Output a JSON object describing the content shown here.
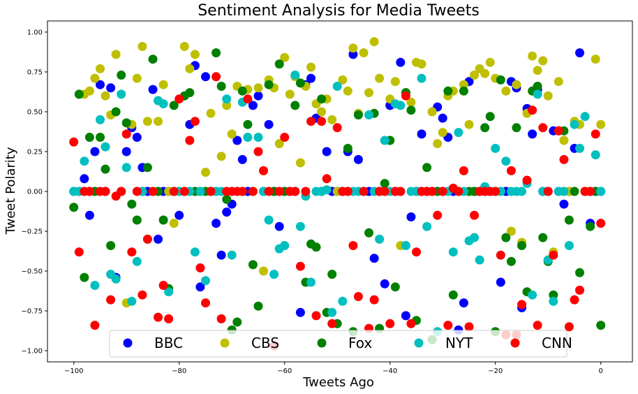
{
  "chart_data": {
    "type": "scatter",
    "title": "Sentiment Analysis for Media Tweets",
    "xlabel": "Tweets Ago",
    "ylabel": "Tweet Polarity",
    "xlim": [
      -105,
      6
    ],
    "ylim": [
      -1.07,
      1.07
    ],
    "xticks": [
      -100,
      -80,
      -60,
      -40,
      -20,
      0
    ],
    "yticks": [
      -1.0,
      -0.75,
      -0.5,
      -0.25,
      0.0,
      0.25,
      0.5,
      0.75,
      1.0
    ],
    "xtick_labels": [
      "−100",
      "−80",
      "−60",
      "−40",
      "−20",
      "0"
    ],
    "ytick_labels": [
      "−1.00",
      "−0.75",
      "−0.50",
      "−0.25",
      "0.00",
      "0.25",
      "0.50",
      "0.75",
      "1.00"
    ],
    "grid": false,
    "legend_position": "bottom",
    "series": [
      {
        "name": "BBC",
        "color": "#0000ff",
        "x": [
          -100,
          -99,
          -98,
          -97,
          -96,
          -95,
          -94,
          -93,
          -92,
          -91,
          -90,
          -89,
          -88,
          -87,
          -86,
          -85,
          -84,
          -83,
          -82,
          -81,
          -80,
          -79,
          -78,
          -77,
          -76,
          -75,
          -74,
          -73,
          -72,
          -71,
          -70,
          -69,
          -68,
          -67,
          -66,
          -65,
          -64,
          -63,
          -62,
          -61,
          -60,
          -59,
          -58,
          -57,
          -56,
          -55,
          -54,
          -53,
          -52,
          -51,
          -50,
          -49,
          -48,
          -47,
          -46,
          -45,
          -44,
          -43,
          -42,
          -41,
          -40,
          -39,
          -38,
          -37,
          -36,
          -35,
          -34,
          -33,
          -32,
          -31,
          -30,
          -29,
          -28,
          -27,
          -26,
          -25,
          -24,
          -23,
          -22,
          -21,
          -20,
          -19,
          -18,
          -17,
          -16,
          -15,
          -14,
          -13,
          -12,
          -11,
          -10,
          -9,
          -8,
          -7,
          -6,
          -5,
          -4,
          -3,
          -2,
          -1,
          0
        ],
        "y": [
          0,
          0,
          0.08,
          -0.15,
          0.25,
          0.67,
          0,
          0.65,
          -0.54,
          0,
          0.25,
          0.4,
          0.34,
          0.15,
          0,
          0.64,
          -0.3,
          0,
          0,
          0,
          -0.15,
          0,
          0.42,
          0.79,
          -0.6,
          0.72,
          0,
          -0.2,
          -0.4,
          -0.13,
          -0.08,
          0.32,
          0.2,
          0,
          0.54,
          0.6,
          0,
          0.42,
          0,
          -0.22,
          0,
          0,
          0,
          -0.76,
          0.67,
          0.71,
          0.46,
          0,
          0.25,
          0,
          0,
          0,
          0.25,
          0.86,
          0.2,
          0,
          0,
          -0.42,
          0,
          -0.58,
          0.54,
          0,
          0.81,
          -0.78,
          -0.16,
          0,
          0.36,
          0,
          0,
          0.53,
          0.46,
          0.34,
          0,
          -0.87,
          -0.7,
          0.69,
          0,
          0,
          0,
          0,
          0,
          -0.57,
          0,
          0.69,
          0.65,
          -0.73,
          0.52,
          0.36,
          0.64,
          0,
          0,
          0.38,
          0,
          -0.08,
          0,
          0.27,
          0.87,
          0,
          -0.2,
          0,
          0
        ]
      },
      {
        "name": "CBS",
        "color": "#bfbf00",
        "x": [
          -100,
          -99,
          -98,
          -97,
          -96,
          -95,
          -94,
          -93,
          -92,
          -91,
          -90,
          -89,
          -88,
          -87,
          -86,
          -85,
          -84,
          -83,
          -82,
          -81,
          -80,
          -79,
          -78,
          -77,
          -76,
          -75,
          -74,
          -73,
          -72,
          -71,
          -70,
          -69,
          -68,
          -67,
          -66,
          -65,
          -64,
          -63,
          -62,
          -61,
          -60,
          -59,
          -58,
          -57,
          -56,
          -55,
          -54,
          -53,
          -52,
          -51,
          -50,
          -49,
          -48,
          -47,
          -46,
          -45,
          -44,
          -43,
          -42,
          -41,
          -40,
          -39,
          -38,
          -37,
          -36,
          -35,
          -34,
          -33,
          -32,
          -31,
          -30,
          -29,
          -28,
          -27,
          -26,
          -25,
          -24,
          -23,
          -22,
          -21,
          -20,
          -19,
          -18,
          -17,
          -16,
          -15,
          -14,
          -13,
          -12,
          -11,
          -10,
          -9,
          -8,
          -7,
          -6,
          -5,
          -4,
          -3,
          -2,
          -1,
          0
        ],
        "y": [
          0,
          0,
          0.61,
          0.63,
          0.71,
          0.77,
          0.6,
          0.48,
          0.86,
          0,
          -0.7,
          0.42,
          0.71,
          0.91,
          0.44,
          0,
          0.44,
          0.67,
          0,
          -0.2,
          0,
          0.91,
          0.77,
          0.86,
          0,
          0.12,
          0.49,
          0,
          0.22,
          0.54,
          0.36,
          0.66,
          0,
          0.64,
          0,
          0.65,
          -0.5,
          0.7,
          0.65,
          0.3,
          0.84,
          0.61,
          0.72,
          0.18,
          0.66,
          0.78,
          0.55,
          0.5,
          0.58,
          0.45,
          0,
          0.7,
          0.63,
          0.9,
          0.49,
          0.87,
          0.62,
          0.94,
          0.71,
          0,
          0.58,
          0.69,
          -0.34,
          0.62,
          0.56,
          0.81,
          0.8,
          0,
          0.5,
          0.3,
          0.37,
          0.6,
          0.63,
          0,
          0.67,
          0.42,
          0.73,
          0.77,
          0.74,
          0.81,
          0.71,
          0,
          0.63,
          -0.25,
          0.67,
          -0.32,
          0.49,
          0.85,
          0.76,
          0.82,
          0.6,
          -0.38,
          0.69,
          0.32,
          0,
          0.44,
          0.42,
          0,
          0,
          0.83,
          0.42
        ]
      },
      {
        "name": "Fox",
        "color": "#008000",
        "x": [
          -100,
          -99,
          -98,
          -97,
          -96,
          -95,
          -94,
          -93,
          -92,
          -91,
          -90,
          -89,
          -88,
          -87,
          -86,
          -85,
          -84,
          -83,
          -82,
          -81,
          -80,
          -79,
          -78,
          -77,
          -76,
          -75,
          -74,
          -73,
          -72,
          -71,
          -70,
          -69,
          -68,
          -67,
          -66,
          -65,
          -64,
          -63,
          -62,
          -61,
          -60,
          -59,
          -58,
          -57,
          -56,
          -55,
          -54,
          -53,
          -52,
          -51,
          -50,
          -49,
          -48,
          -47,
          -46,
          -45,
          -44,
          -43,
          -42,
          -41,
          -40,
          -39,
          -38,
          -37,
          -36,
          -35,
          -34,
          -33,
          -32,
          -31,
          -30,
          -29,
          -28,
          -27,
          -26,
          -25,
          -24,
          -23,
          -22,
          -21,
          -20,
          -19,
          -18,
          -17,
          -16,
          -15,
          -14,
          -13,
          -12,
          -11,
          -10,
          -9,
          -8,
          -7,
          -6,
          -5,
          -4,
          -3,
          -2,
          -1,
          0
        ],
        "y": [
          -0.1,
          0.61,
          -0.54,
          0.34,
          0,
          0.34,
          0.14,
          -0.34,
          0.5,
          0.73,
          0.43,
          -0.08,
          -0.18,
          0,
          0.15,
          0.83,
          0,
          -0.18,
          -0.61,
          0.54,
          0,
          0.6,
          0.62,
          0,
          0,
          0,
          0,
          0.87,
          0.66,
          -0.05,
          -0.87,
          -0.82,
          0.63,
          0.42,
          -0.46,
          -0.72,
          0,
          0.67,
          0,
          0.8,
          0,
          0,
          0.54,
          0.68,
          -0.57,
          -0.33,
          -0.35,
          0.58,
          -0.76,
          -0.52,
          -0.83,
          0,
          0.27,
          -0.88,
          0.48,
          0,
          -0.26,
          0.49,
          -0.86,
          0.05,
          0.32,
          -0.6,
          0,
          0.62,
          0.51,
          -0.81,
          0,
          0.15,
          -0.93,
          0,
          0,
          0.63,
          -0.65,
          0,
          0.63,
          0,
          0,
          0,
          0.4,
          0.47,
          -0.88,
          0.7,
          -0.29,
          -0.44,
          0.4,
          -0.34,
          -0.63,
          0.63,
          0.66,
          -0.29,
          -0.44,
          -0.65,
          0.38,
          0.38,
          -0.18,
          0,
          -0.51,
          0,
          -0.22,
          0,
          -0.84
        ]
      },
      {
        "name": "NYT",
        "color": "#00bfbf",
        "x": [
          -100,
          -99,
          -98,
          -97,
          -96,
          -95,
          -94,
          -93,
          -92,
          -91,
          -90,
          -89,
          -88,
          -87,
          -86,
          -85,
          -84,
          -83,
          -82,
          -81,
          -80,
          -79,
          -78,
          -77,
          -76,
          -75,
          -74,
          -73,
          -72,
          -71,
          -70,
          -69,
          -68,
          -67,
          -66,
          -65,
          -64,
          -63,
          -62,
          -61,
          -60,
          -59,
          -58,
          -57,
          -56,
          -55,
          -54,
          -53,
          -52,
          -51,
          -50,
          -49,
          -48,
          -47,
          -46,
          -45,
          -44,
          -43,
          -42,
          -41,
          -40,
          -39,
          -38,
          -37,
          -36,
          -35,
          -34,
          -33,
          -32,
          -31,
          -30,
          -29,
          -28,
          -27,
          -26,
          -25,
          -24,
          -23,
          -22,
          -21,
          -20,
          -19,
          -18,
          -17,
          -16,
          -15,
          -14,
          -13,
          -12,
          -11,
          -10,
          -9,
          -8,
          -7,
          -6,
          -5,
          -4,
          -3,
          -2,
          -1,
          0
        ],
        "y": [
          0,
          0,
          0.19,
          0,
          -0.59,
          0.45,
          0.28,
          -0.52,
          -0.55,
          0.61,
          0.15,
          -0.69,
          -0.44,
          0,
          -0.3,
          0,
          0.57,
          0.55,
          -0.63,
          0,
          0,
          0,
          0,
          -0.38,
          0,
          -0.56,
          0,
          0,
          0,
          0.58,
          -0.4,
          0,
          0.56,
          0.34,
          0,
          0.34,
          0,
          -0.18,
          -0.52,
          -0.36,
          -0.34,
          0,
          0.73,
          -0.22,
          -0.03,
          -0.57,
          0,
          0,
          0.01,
          -0.76,
          0.66,
          -0.69,
          0,
          0,
          0,
          0,
          0.48,
          0,
          -0.3,
          0.32,
          0,
          0.55,
          0.54,
          -0.34,
          0,
          0,
          0.71,
          -0.22,
          0,
          -0.88,
          0,
          0,
          -0.38,
          0.37,
          0,
          -0.31,
          -0.29,
          -0.43,
          0.03,
          0,
          0.27,
          0,
          0.19,
          0,
          0,
          0,
          0.05,
          -0.65,
          0.61,
          0,
          -0.43,
          -0.69,
          0,
          0,
          -0.34,
          0.42,
          0.27,
          0.47,
          0,
          0.23,
          0
        ]
      },
      {
        "name": "CNN",
        "color": "#ff0000",
        "x": [
          -100,
          -99,
          -98,
          -97,
          -96,
          -95,
          -94,
          -93,
          -92,
          -91,
          -90,
          -89,
          -88,
          -87,
          -86,
          -85,
          -84,
          -83,
          -82,
          -81,
          -80,
          -79,
          -78,
          -77,
          -76,
          -75,
          -74,
          -73,
          -72,
          -71,
          -70,
          -69,
          -68,
          -67,
          -66,
          -65,
          -64,
          -63,
          -62,
          -61,
          -60,
          -59,
          -58,
          -57,
          -56,
          -55,
          -54,
          -53,
          -52,
          -51,
          -50,
          -49,
          -48,
          -47,
          -46,
          -45,
          -44,
          -43,
          -42,
          -41,
          -40,
          -39,
          -38,
          -37,
          -36,
          -35,
          -34,
          -33,
          -32,
          -31,
          -30,
          -29,
          -28,
          -27,
          -26,
          -25,
          -24,
          -23,
          -22,
          -21,
          -20,
          -19,
          -18,
          -17,
          -16,
          -15,
          -14,
          -13,
          -12,
          -11,
          -10,
          -9,
          -8,
          -7,
          -6,
          -5,
          -4,
          -3,
          -2,
          -1,
          0
        ],
        "y": [
          0.31,
          -0.38,
          0,
          0,
          -0.84,
          0,
          0,
          -0.68,
          -0.03,
          0,
          0.36,
          -0.38,
          0,
          -0.65,
          -0.3,
          0,
          -0.79,
          -0.59,
          -0.8,
          0,
          0.58,
          0,
          0.32,
          0.44,
          -0.48,
          -0.7,
          0,
          0.72,
          -0.8,
          0,
          0,
          0,
          0,
          0.58,
          0,
          0.25,
          0.13,
          0,
          -0.97,
          0,
          0.34,
          0,
          0,
          -0.47,
          0,
          0.44,
          -0.78,
          0.44,
          0.08,
          -0.83,
          0.4,
          0,
          0,
          -0.34,
          -0.66,
          0,
          -0.86,
          -0.68,
          0,
          0,
          -0.83,
          0,
          0,
          0.6,
          -0.83,
          -0.38,
          0,
          0,
          0,
          -0.15,
          0,
          -0.84,
          0.02,
          0,
          0.13,
          -0.85,
          -0.15,
          0,
          0,
          0,
          0,
          -0.4,
          -0.9,
          0.13,
          -0.9,
          -0.71,
          0.07,
          0.51,
          -0.84,
          0.4,
          0,
          -0.4,
          0.38,
          0.2,
          -0.85,
          -0.68,
          -0.62,
          0,
          0,
          0.36,
          -0.2
        ]
      }
    ]
  }
}
